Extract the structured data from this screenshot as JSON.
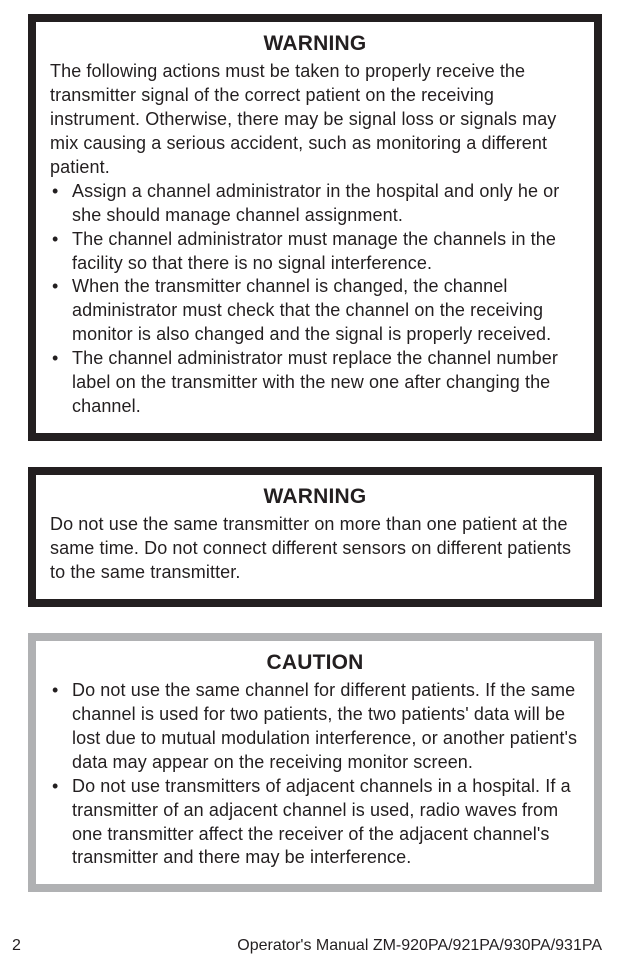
{
  "warning1": {
    "title": "WARNING",
    "intro": "The following actions must be taken to properly receive the transmitter signal of the correct patient on the receiving instrument. Otherwise, there may be signal loss or signals may mix causing a serious accident, such as monitoring a different patient.",
    "bullets": [
      "Assign a channel administrator in the hospital and only he or she should manage channel assignment.",
      "The channel administrator must manage the channels in the facility so that there is no signal interference.",
      "When the transmitter channel is changed, the channel administrator must check that the channel on the receiving monitor is also changed and the signal is properly received.",
      "The channel administrator must replace the channel number label on the transmitter with the new one after changing the channel."
    ]
  },
  "warning2": {
    "title": "WARNING",
    "text": "Do not use the same transmitter on more than one patient at the same time. Do not connect different sensors on different patients to the same transmitter."
  },
  "caution": {
    "title": "CAUTION",
    "bullets": [
      "Do not use the same channel for different patients. If the same channel is used for two patients, the two patients' data will be lost due to mutual modulation interference, or another patient's data may appear on the receiving monitor screen.",
      "Do not use transmitters of adjacent channels in a hospital. If a transmitter of an adjacent channel is used, radio waves from one transmitter affect the receiver of the adjacent channel's transmitter and there may be interference."
    ]
  },
  "footer": {
    "page": "2",
    "text": "Operator's Manual  ZM-920PA/921PA/930PA/931PA"
  }
}
